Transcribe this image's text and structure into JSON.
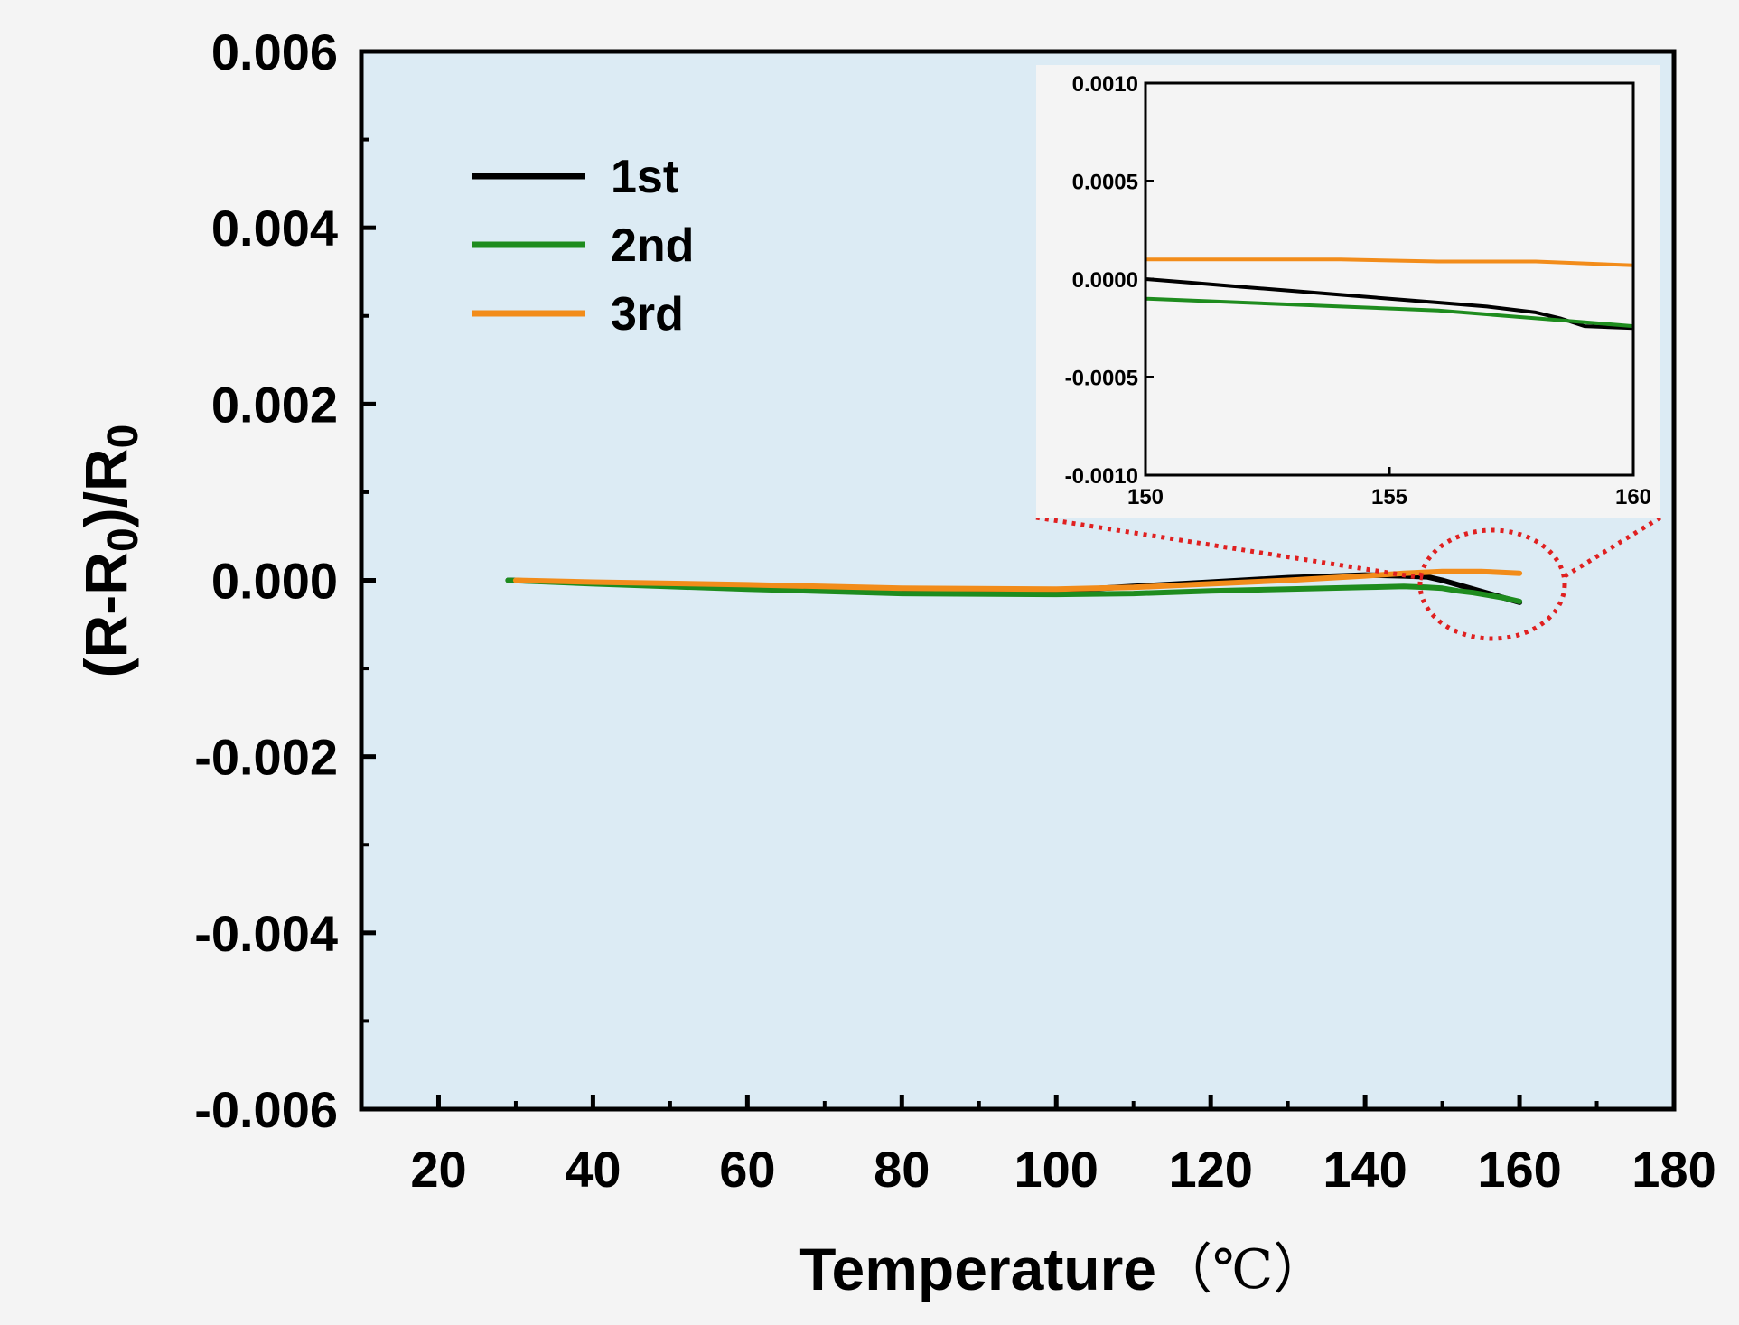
{
  "colors": {
    "page_background": "#f4f4f4",
    "plot_background": "#dcebf4",
    "inset_background": "#f4f4f4",
    "axis": "#000000",
    "zoom_marker": "#e02020"
  },
  "chart_data": [
    {
      "id": "main",
      "type": "line",
      "title": "",
      "xlabel": "Temperature",
      "xlabel_unit": "（℃）",
      "ylabel": "(R-R",
      "ylabel_sub": "0",
      "ylabel_mid": ")/R",
      "ylabel_sub2": "0",
      "xlim": [
        10,
        180
      ],
      "ylim": [
        -0.006,
        0.006
      ],
      "x_ticks": [
        20,
        40,
        60,
        80,
        100,
        120,
        140,
        160,
        180
      ],
      "x_tick_labels": [
        "20",
        "40",
        "60",
        "80",
        "100",
        "120",
        "140",
        "160",
        "180"
      ],
      "y_ticks": [
        -0.006,
        -0.004,
        -0.002,
        0.0,
        0.002,
        0.004,
        0.006
      ],
      "y_tick_labels": [
        "-0.006",
        "-0.004",
        "-0.002",
        "0.000",
        "0.002",
        "0.004",
        "0.006"
      ],
      "grid": false,
      "legend_position": "top-left",
      "series": [
        {
          "name": "1st",
          "color": "#000000",
          "x": [
            29,
            40,
            60,
            80,
            100,
            110,
            120,
            130,
            140,
            145,
            148,
            150,
            152,
            154,
            156,
            158,
            160
          ],
          "y": [
            0.0,
            -3e-05,
            -8e-05,
            -0.00012,
            -0.00012,
            -7e-05,
            -2e-05,
            3e-05,
            6e-05,
            5e-05,
            4e-05,
            0.0,
            -5e-05,
            -0.0001,
            -0.00015,
            -0.0002,
            -0.00025
          ]
        },
        {
          "name": "2nd",
          "color": "#1e8c1e",
          "x": [
            29,
            40,
            60,
            80,
            100,
            110,
            120,
            130,
            140,
            145,
            148,
            150,
            152,
            154,
            156,
            158,
            160
          ],
          "y": [
            0.0,
            -4e-05,
            -0.0001,
            -0.00015,
            -0.00016,
            -0.00015,
            -0.00012,
            -0.0001,
            -8e-05,
            -7e-05,
            -8e-05,
            -9e-05,
            -0.00012,
            -0.00014,
            -0.00017,
            -0.0002,
            -0.00024
          ]
        },
        {
          "name": "3rd",
          "color": "#f28c1a",
          "x": [
            30,
            40,
            60,
            80,
            100,
            110,
            120,
            130,
            140,
            145,
            150,
            155,
            160
          ],
          "y": [
            0.0,
            -2e-05,
            -5e-05,
            -9e-05,
            -0.0001,
            -8e-05,
            -4e-05,
            0.0,
            5e-05,
            8e-05,
            0.0001,
            0.0001,
            8e-05
          ]
        }
      ]
    },
    {
      "id": "inset",
      "type": "line",
      "title": "",
      "xlabel": "",
      "ylabel": "",
      "xlim": [
        150,
        160
      ],
      "ylim": [
        -0.001,
        0.001
      ],
      "x_ticks": [
        150,
        155,
        160
      ],
      "x_tick_labels": [
        "150",
        "155",
        "160"
      ],
      "y_ticks": [
        -0.001,
        -0.0005,
        0.0,
        0.0005,
        0.001
      ],
      "y_tick_labels": [
        "-0.0010",
        "-0.0005",
        "0.0000",
        "0.0005",
        "0.0010"
      ],
      "grid": false,
      "series": [
        {
          "name": "1st",
          "color": "#000000",
          "x": [
            150,
            151,
            152,
            153,
            154,
            155,
            156,
            157,
            158,
            158.5,
            159,
            160
          ],
          "y": [
            0.0,
            -2e-05,
            -4e-05,
            -6e-05,
            -8e-05,
            -0.0001,
            -0.00012,
            -0.00014,
            -0.00017,
            -0.0002,
            -0.00024,
            -0.00025
          ]
        },
        {
          "name": "2nd",
          "color": "#1e8c1e",
          "x": [
            150,
            152,
            154,
            156,
            158,
            160
          ],
          "y": [
            -0.0001,
            -0.00012,
            -0.00014,
            -0.00016,
            -0.0002,
            -0.00024
          ]
        },
        {
          "name": "3rd",
          "color": "#f28c1a",
          "x": [
            150,
            152,
            154,
            156,
            158,
            160
          ],
          "y": [
            0.0001,
            0.0001,
            0.0001,
            9e-05,
            9e-05,
            7e-05
          ]
        }
      ]
    }
  ]
}
